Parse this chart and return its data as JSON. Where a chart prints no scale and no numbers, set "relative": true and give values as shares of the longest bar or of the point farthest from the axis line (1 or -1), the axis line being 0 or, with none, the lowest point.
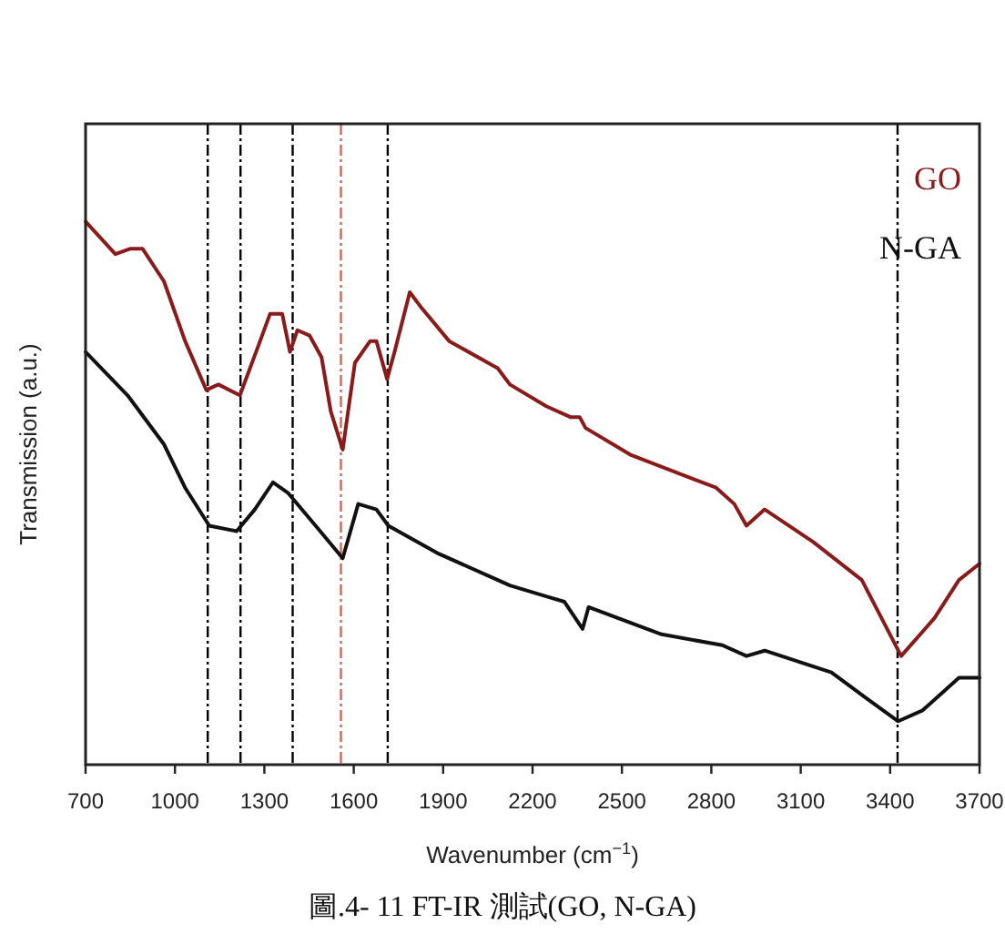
{
  "chart_data": {
    "type": "line",
    "relative": true,
    "xlabel": "Wavenumber (cm$^{−1}$)",
    "ylabel": "Transmission (a.u.)",
    "xlim": [
      700,
      3700
    ],
    "xticks": [
      700,
      1000,
      1300,
      1600,
      1900,
      2200,
      2500,
      2800,
      3100,
      3400,
      3700
    ],
    "legend": "top right",
    "grid": false,
    "marker": "none",
    "line_style": "solid",
    "series": [
      {
        "name": "GO",
        "color": "#8b1a1a",
        "x": [
          700,
          800,
          851,
          891,
          963,
          1034,
          1105,
          1146,
          1218,
          1279,
          1319,
          1360,
          1386,
          1411,
          1452,
          1492,
          1523,
          1563,
          1604,
          1655,
          1676,
          1712,
          1737,
          1788,
          1829,
          1920,
          2083,
          2124,
          2246,
          2327,
          2358,
          2378,
          2531,
          2816,
          2877,
          2918,
          2979,
          3142,
          3305,
          3437,
          3549,
          3631,
          3700
        ],
        "values": [
          1.0,
          0.94,
          0.95,
          0.95,
          0.89,
          0.78,
          0.69,
          0.7,
          0.68,
          0.77,
          0.83,
          0.83,
          0.76,
          0.8,
          0.79,
          0.75,
          0.65,
          0.58,
          0.74,
          0.78,
          0.78,
          0.71,
          0.76,
          0.87,
          0.84,
          0.78,
          0.73,
          0.7,
          0.66,
          0.64,
          0.64,
          0.62,
          0.57,
          0.51,
          0.48,
          0.44,
          0.47,
          0.41,
          0.34,
          0.2,
          0.27,
          0.34,
          0.37
        ]
      },
      {
        "name": "N-GA",
        "color": "#111111",
        "x": [
          700,
          841,
          963,
          1034,
          1115,
          1207,
          1268,
          1329,
          1380,
          1472,
          1563,
          1615,
          1676,
          1716,
          1879,
          2083,
          2124,
          2246,
          2307,
          2368,
          2388,
          2633,
          2837,
          2918,
          2979,
          3203,
          3326,
          3427,
          3509,
          3631,
          3700
        ],
        "values": [
          0.76,
          0.68,
          0.59,
          0.51,
          0.44,
          0.43,
          0.47,
          0.52,
          0.5,
          0.44,
          0.38,
          0.48,
          0.47,
          0.44,
          0.39,
          0.34,
          0.33,
          0.31,
          0.3,
          0.25,
          0.29,
          0.24,
          0.22,
          0.2,
          0.21,
          0.17,
          0.12,
          0.08,
          0.1,
          0.16,
          0.16
        ]
      }
    ],
    "ref_lines": [
      {
        "axis": "x",
        "value": 1110,
        "color": "#000000",
        "line_style": "dashdot"
      },
      {
        "axis": "x",
        "value": 1220,
        "color": "#000000",
        "line_style": "dashdot"
      },
      {
        "axis": "x",
        "value": 1395,
        "color": "#000000",
        "line_style": "dashdot"
      },
      {
        "axis": "x",
        "value": 1557,
        "color": "#e06050",
        "line_style": "dashdot"
      },
      {
        "axis": "x",
        "value": 1714,
        "color": "#000000",
        "line_style": "dashdot"
      },
      {
        "axis": "x",
        "value": 3425,
        "color": "#000000",
        "line_style": "dashdot"
      }
    ],
    "annotations": [
      "圖.4- 11 FT-IR 測試(GO, N-GA)"
    ]
  }
}
